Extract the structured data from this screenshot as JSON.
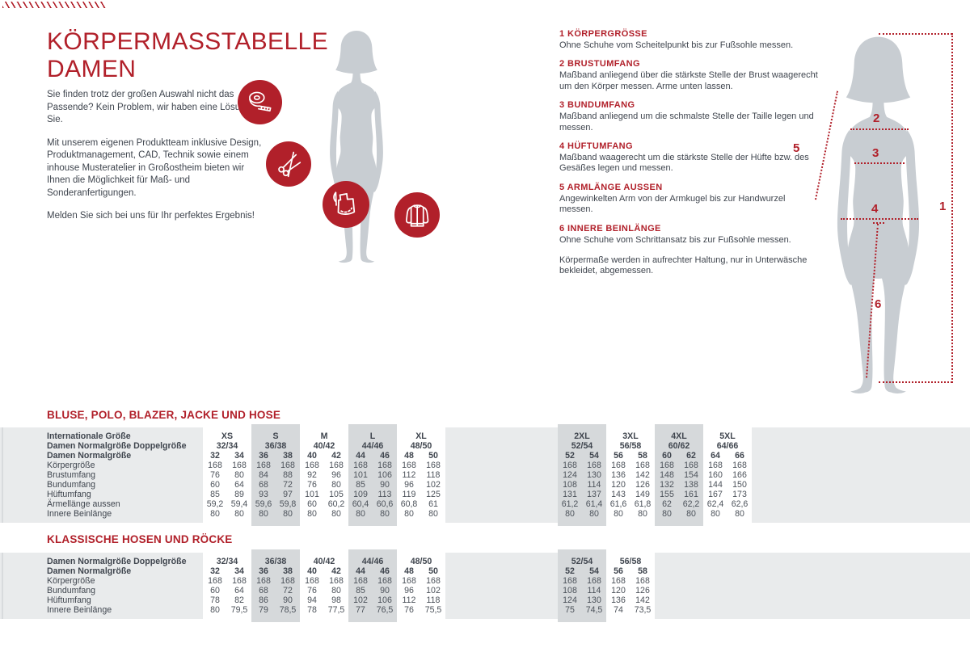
{
  "header": {
    "title_line1": "KÖRPERMASSTABELLE",
    "title_line2": "DAMEN"
  },
  "intro": {
    "paragraphs": [
      "Sie finden trotz der großen Auswahl nicht das Passende? Kein Problem, wir haben eine Lösung für Sie.",
      "Mit unserem eigenen Produktteam inklusive Design, Produktmanagement, CAD, Technik sowie einem inhouse Musteratelier in Großostheim bieten wir Ihnen die Möglichkeit für Maß- und Sonderanfertigungen.",
      "Melden Sie sich bei uns für Ihr perfektes Ergebnis!"
    ]
  },
  "icons": [
    "measuring-tape",
    "scissors",
    "sewing-pattern",
    "jacket"
  ],
  "instructions": {
    "items": [
      {
        "num": "1",
        "title": "KÖRPERGRÖSSE",
        "body": "Ohne Schuhe vom Scheitelpunkt bis zur Fußsohle messen."
      },
      {
        "num": "2",
        "title": "BRUSTUMFANG",
        "body": "Maßband anliegend über die stärkste Stelle der Brust waagerecht um den Körper messen. Arme unten lassen."
      },
      {
        "num": "3",
        "title": "BUNDUMFANG",
        "body": "Maßband anliegend um die schmalste Stelle der Taille legen und messen."
      },
      {
        "num": "4",
        "title": "HÜFTUMFANG",
        "body": "Maßband waagerecht um die stärkste Stelle der Hüfte bzw. des Gesäßes legen und messen."
      },
      {
        "num": "5",
        "title": "ARMLÄNGE AUSSEN",
        "body": "Angewinkelten Arm von der Armkugel bis zur Handwurzel messen."
      },
      {
        "num": "6",
        "title": "INNERE BEINLÄNGE",
        "body": "Ohne Schuhe vom Schrittansatz bis zur Fußsohle messen."
      }
    ],
    "note": "Körpermaße werden in aufrechter Haltung, nur in Unterwäsche bekleidet, abgemessen."
  },
  "figure_labels": [
    "1",
    "2",
    "3",
    "4",
    "5",
    "6"
  ],
  "colors": {
    "brand_red": "#b1202a",
    "silhouette": "#c8cdd2",
    "band_gray": "#e9ebec",
    "stripe_gray": "#d6d9db"
  },
  "tables": [
    {
      "title": "BLUSE, POLO, BLAZER, JACKE UND HOSE",
      "header_rows": [
        {
          "label": "Internationale Größe",
          "groups": [
            "XS",
            "S",
            "M",
            "L",
            "XL",
            "2XL",
            "3XL",
            "4XL",
            "5XL"
          ]
        },
        {
          "label": "Damen Normalgröße Doppelgröße",
          "groups": [
            "32/34",
            "36/38",
            "40/42",
            "44/46",
            "48/50",
            "52/54",
            "56/58",
            "60/62",
            "64/66"
          ]
        },
        {
          "label": "Damen Normalgröße",
          "cells": [
            "32",
            "34",
            "36",
            "38",
            "40",
            "42",
            "44",
            "46",
            "48",
            "50",
            "52",
            "54",
            "56",
            "58",
            "60",
            "62",
            "64",
            "66"
          ]
        }
      ],
      "rows": [
        {
          "label": "Körpergröße",
          "cells": [
            "168",
            "168",
            "168",
            "168",
            "168",
            "168",
            "168",
            "168",
            "168",
            "168",
            "168",
            "168",
            "168",
            "168",
            "168",
            "168",
            "168",
            "168"
          ]
        },
        {
          "label": "Brustumfang",
          "cells": [
            "76",
            "80",
            "84",
            "88",
            "92",
            "96",
            "101",
            "106",
            "112",
            "118",
            "124",
            "130",
            "136",
            "142",
            "148",
            "154",
            "160",
            "166"
          ]
        },
        {
          "label": "Bundumfang",
          "cells": [
            "60",
            "64",
            "68",
            "72",
            "76",
            "80",
            "85",
            "90",
            "96",
            "102",
            "108",
            "114",
            "120",
            "126",
            "132",
            "138",
            "144",
            "150"
          ]
        },
        {
          "label": "Hüftumfang",
          "cells": [
            "85",
            "89",
            "93",
            "97",
            "101",
            "105",
            "109",
            "113",
            "119",
            "125",
            "131",
            "137",
            "143",
            "149",
            "155",
            "161",
            "167",
            "173"
          ]
        },
        {
          "label": "Ärmellänge aussen",
          "cells": [
            "59,2",
            "59,4",
            "59,6",
            "59,8",
            "60",
            "60,2",
            "60,4",
            "60,6",
            "60,8",
            "61",
            "61,2",
            "61,4",
            "61,6",
            "61,8",
            "62",
            "62,2",
            "62,4",
            "62,6"
          ]
        },
        {
          "label": "Innere Beinlänge",
          "cells": [
            "80",
            "80",
            "80",
            "80",
            "80",
            "80",
            "80",
            "80",
            "80",
            "80",
            "80",
            "80",
            "80",
            "80",
            "80",
            "80",
            "80",
            "80"
          ]
        }
      ],
      "shaded_groups": [
        1,
        3,
        5,
        7
      ]
    },
    {
      "title": "KLASSISCHE HOSEN UND RÖCKE",
      "header_rows": [
        {
          "label": "Damen Normalgröße Doppelgröße",
          "groups": [
            "32/34",
            "36/38",
            "40/42",
            "44/46",
            "48/50",
            "52/54",
            "56/58"
          ]
        },
        {
          "label": "Damen Normalgröße",
          "cells": [
            "32",
            "34",
            "36",
            "38",
            "40",
            "42",
            "44",
            "46",
            "48",
            "50",
            "52",
            "54",
            "56",
            "58"
          ]
        }
      ],
      "rows": [
        {
          "label": "Körpergröße",
          "cells": [
            "168",
            "168",
            "168",
            "168",
            "168",
            "168",
            "168",
            "168",
            "168",
            "168",
            "168",
            "168",
            "168",
            "168"
          ]
        },
        {
          "label": "Bundumfang",
          "cells": [
            "60",
            "64",
            "68",
            "72",
            "76",
            "80",
            "85",
            "90",
            "96",
            "102",
            "108",
            "114",
            "120",
            "126"
          ]
        },
        {
          "label": "Hüftumfang",
          "cells": [
            "78",
            "82",
            "86",
            "90",
            "94",
            "98",
            "102",
            "106",
            "112",
            "118",
            "124",
            "130",
            "136",
            "142"
          ]
        },
        {
          "label": "Innere Beinlänge",
          "cells": [
            "80",
            "79,5",
            "79",
            "78,5",
            "78",
            "77,5",
            "77",
            "76,5",
            "76",
            "75,5",
            "75",
            "74,5",
            "74",
            "73,5"
          ]
        }
      ],
      "shaded_groups": [
        1,
        3,
        5
      ]
    }
  ]
}
